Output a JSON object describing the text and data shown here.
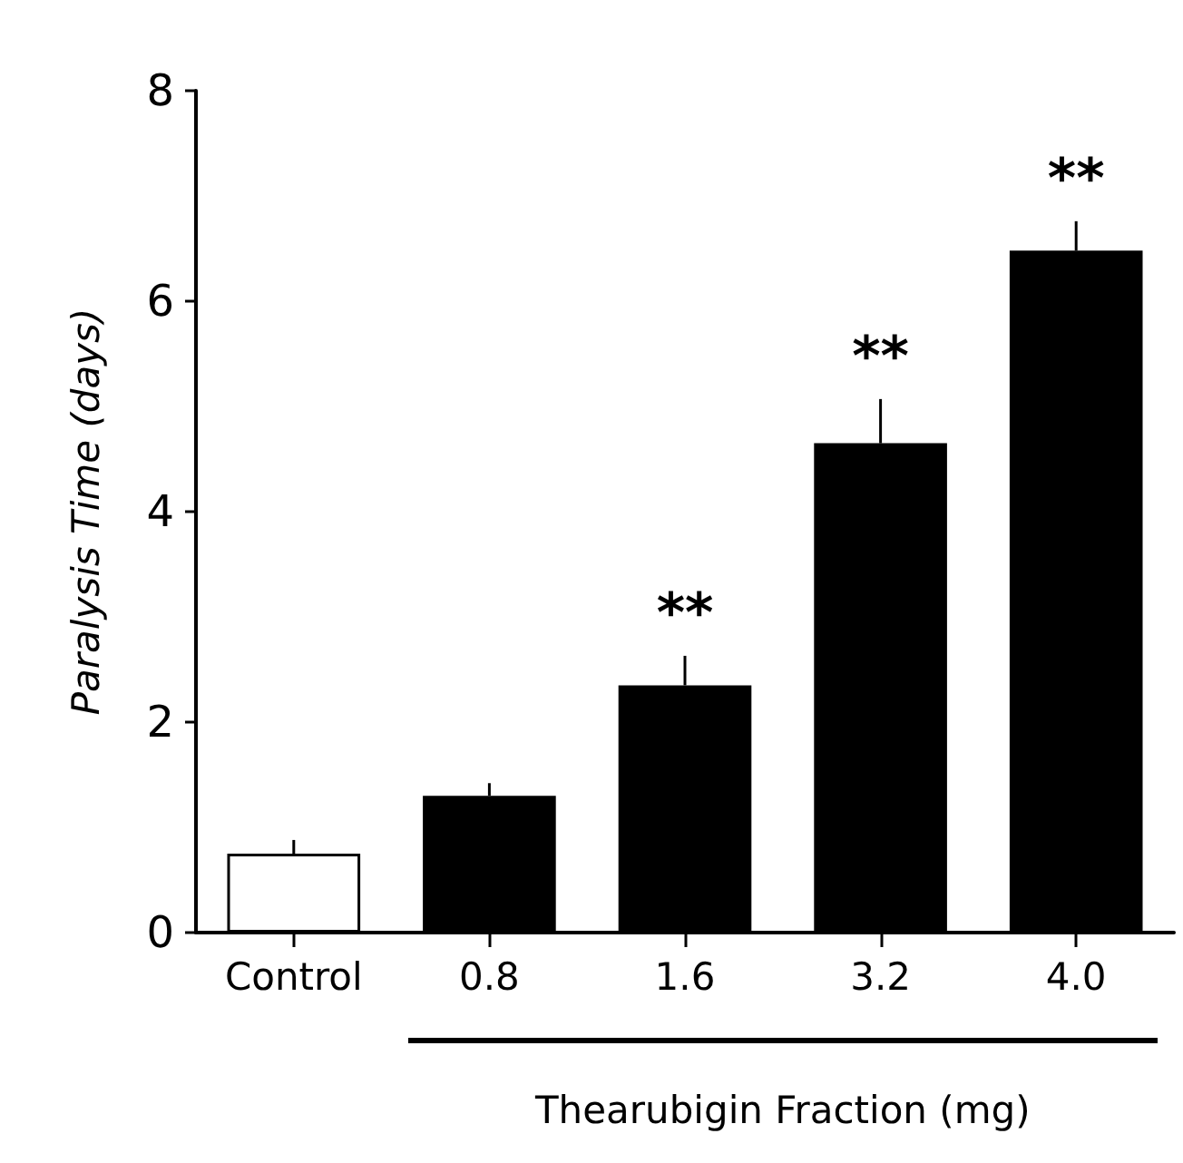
{
  "chart_data": {
    "type": "bar",
    "xlabel": "Thearubigin Fraction (mg)",
    "ylabel": "Paralysis Time (days)",
    "categories": [
      "Control",
      "0.8",
      "1.6",
      "3.2",
      "4.0"
    ],
    "values": [
      0.75,
      1.3,
      2.35,
      4.65,
      6.48
    ],
    "colors": [
      "#ffffff",
      "#000000",
      "#000000",
      "#000000",
      "#000000"
    ],
    "errors": [
      0.13,
      0.12,
      0.28,
      0.42,
      0.28
    ],
    "ylim": [
      0,
      8
    ],
    "yticks": [
      0,
      2,
      4,
      6,
      8
    ],
    "annotations": [
      {
        "text": "**",
        "x": "1.6",
        "y": 2.63
      },
      {
        "text": "**",
        "x": "3.2",
        "y": 5.07
      },
      {
        "text": "**",
        "x": "4.0",
        "y": 6.76
      }
    ]
  }
}
